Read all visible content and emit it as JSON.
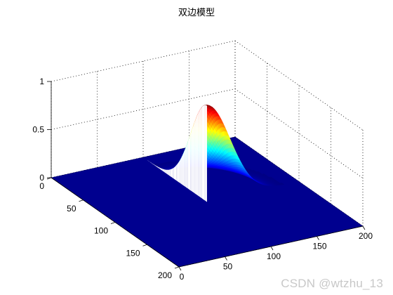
{
  "chart_data": {
    "type": "surface",
    "title": "双边模型",
    "xlabel": "",
    "ylabel": "",
    "zlabel": "",
    "xlim": [
      0,
      200
    ],
    "ylim": [
      0,
      200
    ],
    "zlim": [
      0,
      1
    ],
    "x_ticks": [
      "0",
      "50",
      "100",
      "150",
      "200"
    ],
    "y_ticks": [
      "0",
      "50",
      "100",
      "150",
      "200"
    ],
    "z_ticks": [
      "0",
      "0.5",
      "1"
    ],
    "grid": true,
    "colormap": "jet",
    "background_color": "#00008f",
    "surface": {
      "peak_at": [
        100,
        100
      ],
      "peak_value": 1,
      "nonzero_quadrant": "x >= 100 and y <= 100",
      "decay_sigma": 25,
      "value_elsewhere": 0
    }
  },
  "watermark": "CSDN @wtzhu_13"
}
